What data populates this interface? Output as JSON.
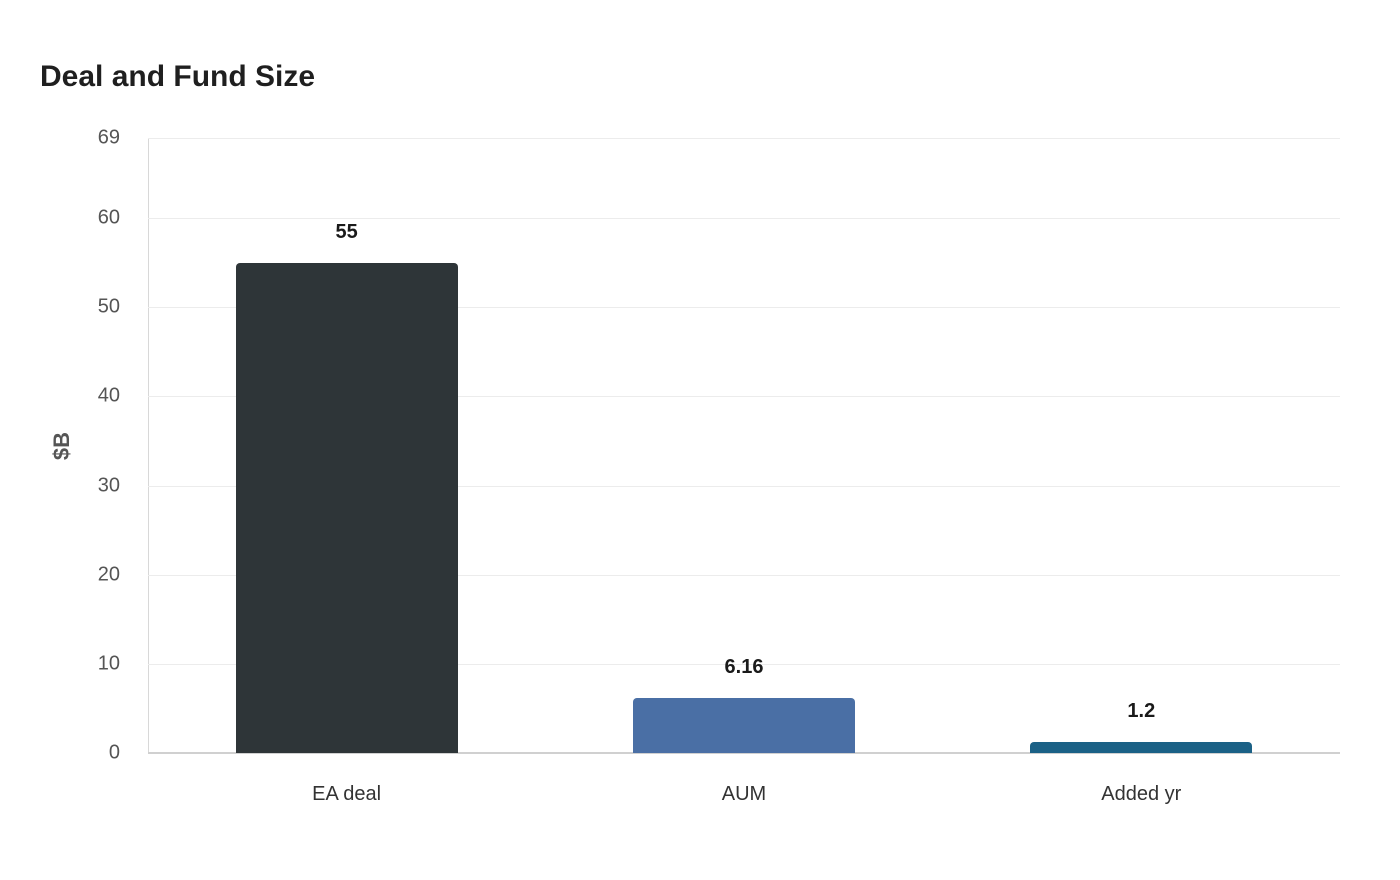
{
  "title": "Deal and Fund Size",
  "chart_data": {
    "type": "bar",
    "title": "Deal and Fund Size",
    "xlabel": "",
    "ylabel": "$B",
    "categories": [
      "EA deal",
      "AUM",
      "Added yr"
    ],
    "values": [
      55,
      6.16,
      1.2
    ],
    "value_labels": [
      "55",
      "6.16",
      "1.2"
    ],
    "colors": [
      "#2e3538",
      "#4a6fa5",
      "#1b6186"
    ],
    "ylim": [
      0,
      69
    ],
    "yticks": [
      0,
      10,
      20,
      30,
      40,
      50,
      60,
      69
    ],
    "grid": true,
    "legend": null
  }
}
